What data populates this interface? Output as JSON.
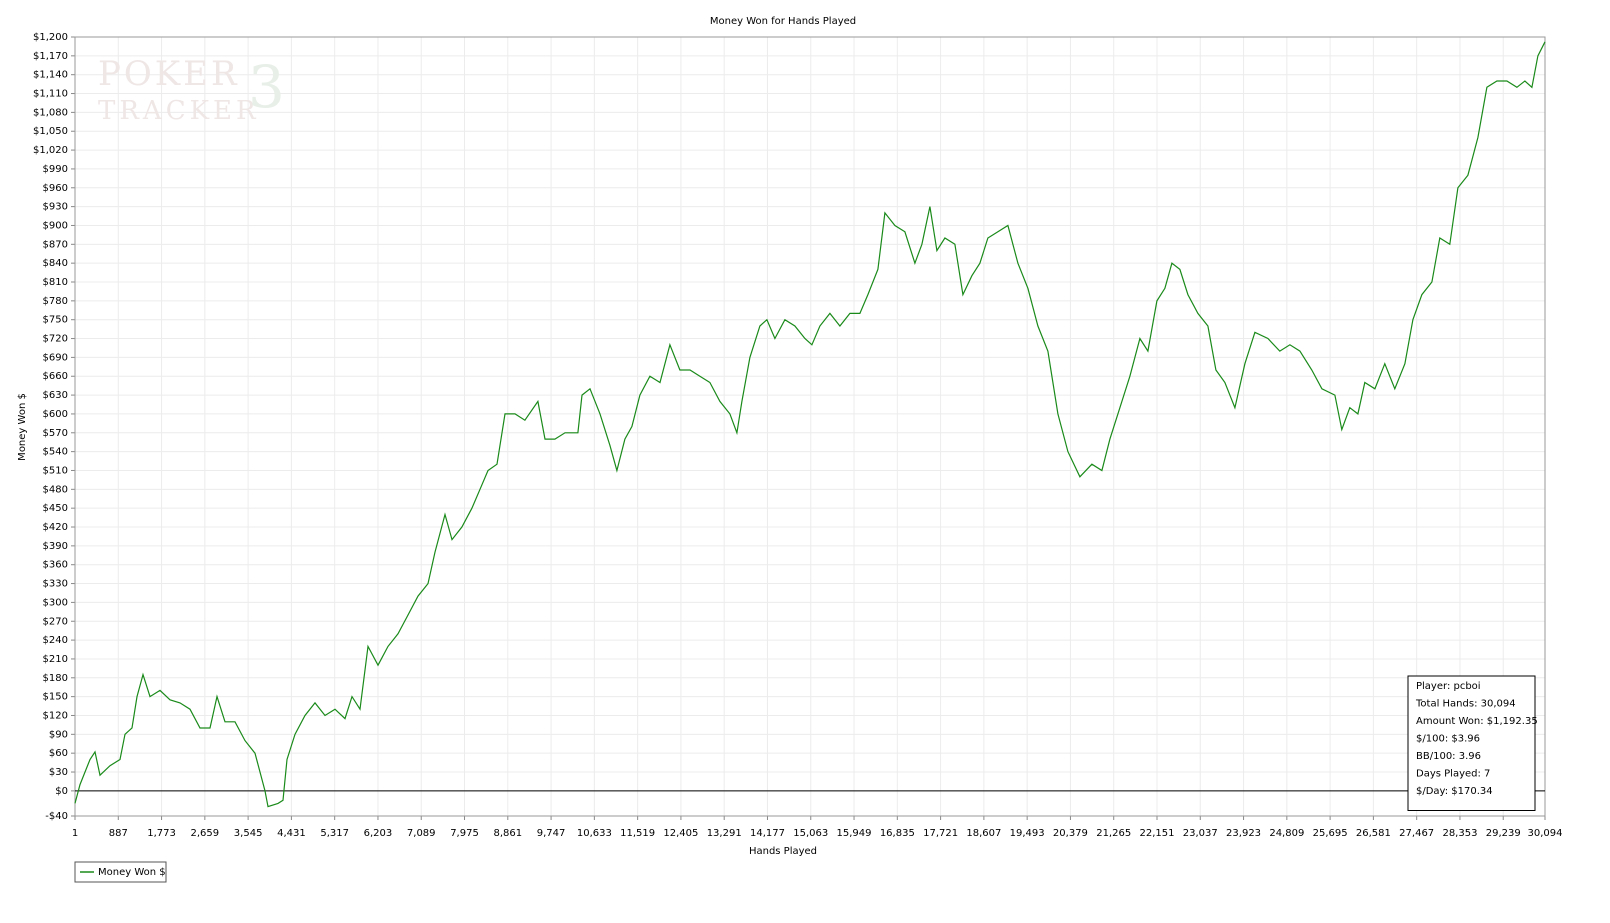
{
  "chart_data": {
    "type": "line",
    "title": "Money Won for Hands Played",
    "x_label": "Hands Played",
    "y_label": "Money Won $",
    "watermark": {
      "line1": "POKER",
      "line2": "TRACKER",
      "mark": "3"
    },
    "stats": [
      "Player: pcboi",
      "Total Hands: 30,094",
      "Amount Won: $1,192.35",
      "$/100: $3.96",
      "BB/100: 3.96",
      "Days Played: 7",
      "$/Day: $170.34"
    ],
    "legend": "bottom-left",
    "grid": true,
    "zero_line": true,
    "xlim": [
      1,
      30094
    ],
    "ylim": [
      -40,
      1200
    ],
    "xticks": [
      1,
      887,
      {
        "value": 1773,
        "label": "1,773"
      },
      {
        "value": 2659,
        "label": "2,659"
      },
      {
        "value": 3545,
        "label": "3,545"
      },
      {
        "value": 4431,
        "label": "4,431"
      },
      {
        "value": 5317,
        "label": "5,317"
      },
      {
        "value": 6203,
        "label": "6,203"
      },
      {
        "value": 7089,
        "label": "7,089"
      },
      {
        "value": 7975,
        "label": "7,975"
      },
      {
        "value": 8861,
        "label": "8,861"
      },
      {
        "value": 9747,
        "label": "9,747"
      },
      {
        "value": 10633,
        "label": "10,633"
      },
      {
        "value": 11519,
        "label": "11,519"
      },
      {
        "value": 12405,
        "label": "12,405"
      },
      {
        "value": 13291,
        "label": "13,291"
      },
      {
        "value": 14177,
        "label": "14,177"
      },
      {
        "value": 15063,
        "label": "15,063"
      },
      {
        "value": 15949,
        "label": "15,949"
      },
      {
        "value": 16835,
        "label": "16,835"
      },
      {
        "value": 17721,
        "label": "17,721"
      },
      {
        "value": 18607,
        "label": "18,607"
      },
      {
        "value": 19493,
        "label": "19,493"
      },
      {
        "value": 20379,
        "label": "20,379"
      },
      {
        "value": 21265,
        "label": "21,265"
      },
      {
        "value": 22151,
        "label": "22,151"
      },
      {
        "value": 23037,
        "label": "23,037"
      },
      {
        "value": 23923,
        "label": "23,923"
      },
      {
        "value": 24809,
        "label": "24,809"
      },
      {
        "value": 25695,
        "label": "25,695"
      },
      {
        "value": 26581,
        "label": "26,581"
      },
      {
        "value": 27467,
        "label": "27,467"
      },
      {
        "value": 28353,
        "label": "28,353"
      },
      {
        "value": 29239,
        "label": "29,239"
      },
      {
        "value": 30094,
        "label": "30,094"
      }
    ],
    "yticks": [
      {
        "value": -40,
        "label": "-$40"
      },
      {
        "value": 0,
        "label": "$0"
      },
      {
        "value": 30,
        "label": "$30"
      },
      {
        "value": 60,
        "label": "$60"
      },
      {
        "value": 90,
        "label": "$90"
      },
      {
        "value": 120,
        "label": "$120"
      },
      {
        "value": 150,
        "label": "$150"
      },
      {
        "value": 180,
        "label": "$180"
      },
      {
        "value": 210,
        "label": "$210"
      },
      {
        "value": 240,
        "label": "$240"
      },
      {
        "value": 270,
        "label": "$270"
      },
      {
        "value": 300,
        "label": "$300"
      },
      {
        "value": 330,
        "label": "$330"
      },
      {
        "value": 360,
        "label": "$360"
      },
      {
        "value": 390,
        "label": "$390"
      },
      {
        "value": 420,
        "label": "$420"
      },
      {
        "value": 450,
        "label": "$450"
      },
      {
        "value": 480,
        "label": "$480"
      },
      {
        "value": 510,
        "label": "$510"
      },
      {
        "value": 540,
        "label": "$540"
      },
      {
        "value": 570,
        "label": "$570"
      },
      {
        "value": 600,
        "label": "$600"
      },
      {
        "value": 630,
        "label": "$630"
      },
      {
        "value": 660,
        "label": "$660"
      },
      {
        "value": 690,
        "label": "$690"
      },
      {
        "value": 720,
        "label": "$720"
      },
      {
        "value": 750,
        "label": "$750"
      },
      {
        "value": 780,
        "label": "$780"
      },
      {
        "value": 810,
        "label": "$810"
      },
      {
        "value": 840,
        "label": "$840"
      },
      {
        "value": 870,
        "label": "$870"
      },
      {
        "value": 900,
        "label": "$900"
      },
      {
        "value": 930,
        "label": "$930"
      },
      {
        "value": 960,
        "label": "$960"
      },
      {
        "value": 990,
        "label": "$990"
      },
      {
        "value": 1020,
        "label": "$1,020"
      },
      {
        "value": 1050,
        "label": "$1,050"
      },
      {
        "value": 1080,
        "label": "$1,080"
      },
      {
        "value": 1110,
        "label": "$1,110"
      },
      {
        "value": 1140,
        "label": "$1,140"
      },
      {
        "value": 1170,
        "label": "$1,170"
      },
      {
        "value": 1200,
        "label": "$1,200"
      }
    ],
    "x": [
      1,
      103,
      308,
      410,
      513,
      718,
      922,
      1024,
      1168,
      1270,
      1393,
      1536,
      1741,
      1946,
      2150,
      2355,
      2560,
      2764,
      2908,
      3072,
      3276,
      3481,
      3686,
      3890,
      3952,
      4156,
      4259,
      4341,
      4504,
      4709,
      4914,
      5118,
      5323,
      5528,
      5671,
      5835,
      5999,
      6203,
      6408,
      6613,
      6817,
      7022,
      7227,
      7370,
      7575,
      7718,
      7922,
      8127,
      8291,
      8455,
      8639,
      8803,
      9008,
      9212,
      9478,
      9622,
      9826,
      10031,
      10297,
      10379,
      10543,
      10748,
      10952,
      11095,
      11259,
      11402,
      11566,
      11771,
      11976,
      12180,
      12385,
      12590,
      12794,
      12999,
      13204,
      13408,
      13551,
      13654,
      13817,
      14022,
      14165,
      14329,
      14534,
      14738,
      14943,
      15086,
      15250,
      15455,
      15660,
      15864,
      16069,
      16233,
      16437,
      16581,
      16785,
      16990,
      17195,
      17338,
      17502,
      17645,
      17809,
      18014,
      18178,
      18362,
      18526,
      18689,
      18894,
      19099,
      19303,
      19508,
      19713,
      19917,
      20122,
      20327,
      20572,
      20818,
      21023,
      21187,
      21391,
      21596,
      21801,
      21964,
      22149,
      22312,
      22456,
      22619,
      22783,
      22988,
      23193,
      23357,
      23541,
      23745,
      23950,
      24155,
      24421,
      24666,
      24871,
      25076,
      25321,
      25526,
      25792,
      25935,
      26099,
      26263,
      26406,
      26611,
      26815,
      27020,
      27225,
      27389,
      27573,
      27778,
      27941,
      28146,
      28310,
      28515,
      28720,
      28904,
      29109,
      29314,
      29518,
      29682,
      29825,
      29948,
      30094
    ],
    "series": [
      {
        "name": "Money Won $",
        "color": "#1a8a1a",
        "values": [
          -20,
          10,
          50,
          62,
          25,
          40,
          50,
          90,
          100,
          150,
          185,
          150,
          160,
          145,
          140,
          130,
          100,
          100,
          150,
          110,
          110,
          80,
          60,
          0,
          -25,
          -20,
          -15,
          50,
          90,
          120,
          140,
          120,
          130,
          115,
          150,
          130,
          230,
          200,
          230,
          250,
          280,
          310,
          330,
          380,
          440,
          400,
          420,
          450,
          480,
          510,
          520,
          600,
          600,
          590,
          620,
          560,
          560,
          570,
          570,
          630,
          640,
          600,
          550,
          510,
          560,
          580,
          630,
          660,
          650,
          710,
          670,
          670,
          660,
          650,
          620,
          600,
          570,
          620,
          690,
          740,
          750,
          720,
          750,
          740,
          720,
          710,
          740,
          760,
          740,
          760,
          760,
          790,
          830,
          920,
          900,
          890,
          840,
          870,
          930,
          860,
          880,
          870,
          790,
          820,
          840,
          880,
          890,
          900,
          840,
          800,
          740,
          700,
          600,
          540,
          500,
          520,
          510,
          560,
          610,
          660,
          720,
          700,
          780,
          800,
          840,
          830,
          790,
          760,
          740,
          670,
          650,
          610,
          680,
          730,
          720,
          700,
          710,
          700,
          670,
          640,
          630,
          575,
          610,
          600,
          650,
          640,
          680,
          640,
          680,
          750,
          790,
          810,
          880,
          870,
          960,
          980,
          1040,
          1120,
          1130,
          1130,
          1120,
          1130,
          1120,
          1170,
          1192.35
        ]
      }
    ]
  }
}
